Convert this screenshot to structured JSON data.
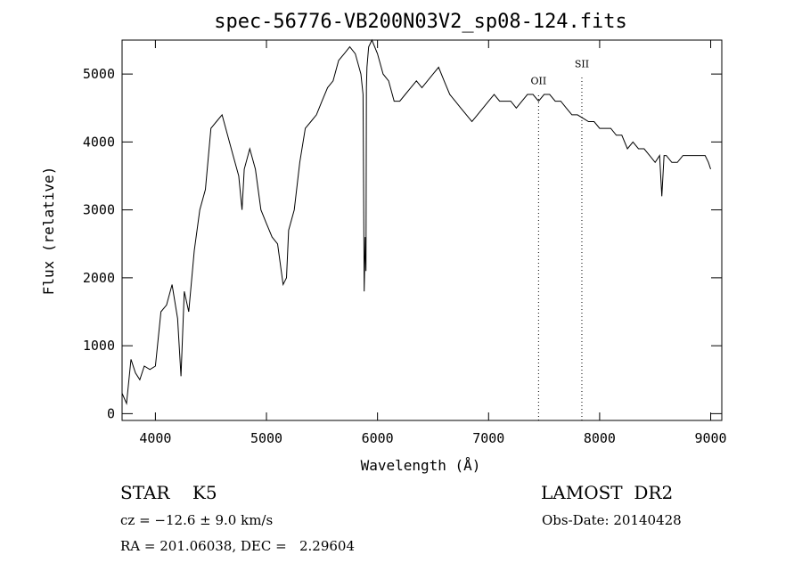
{
  "chart_data": {
    "type": "line",
    "title": "spec-56776-VB200N03V2_sp08-124.fits",
    "xlabel": "Wavelength (Å)",
    "ylabel": "Flux (relative)",
    "xlim": [
      3700,
      9100
    ],
    "ylim": [
      -100,
      5500
    ],
    "x_ticks": [
      4000,
      5000,
      6000,
      7000,
      8000,
      9000
    ],
    "y_ticks": [
      0,
      1000,
      2000,
      3000,
      4000,
      5000
    ],
    "grid": false,
    "series": [
      {
        "x": [
          3700,
          3740,
          3780,
          3820,
          3860,
          3900,
          3950,
          4000,
          4050,
          4100,
          4150,
          4200,
          4230,
          4260,
          4300,
          4350,
          4400,
          4450,
          4500,
          4550,
          4600,
          4650,
          4700,
          4750,
          4780,
          4800,
          4850,
          4900,
          4950,
          5000,
          5050,
          5100,
          5150,
          5180,
          5200,
          5250,
          5300,
          5350,
          5400,
          5450,
          5500,
          5550,
          5600,
          5650,
          5700,
          5750,
          5800,
          5850,
          5870,
          5880,
          5890,
          5896,
          5900,
          5905,
          5920,
          5950,
          6000,
          6050,
          6100,
          6150,
          6200,
          6250,
          6300,
          6350,
          6400,
          6450,
          6500,
          6550,
          6600,
          6650,
          6700,
          6750,
          6800,
          6850,
          6900,
          6950,
          7000,
          7050,
          7100,
          7150,
          7200,
          7250,
          7300,
          7350,
          7400,
          7450,
          7500,
          7550,
          7600,
          7650,
          7700,
          7750,
          7800,
          7850,
          7900,
          7950,
          8000,
          8050,
          8100,
          8150,
          8200,
          8250,
          8300,
          8350,
          8400,
          8450,
          8500,
          8540,
          8560,
          8580,
          8600,
          8650,
          8700,
          8750,
          8800,
          8850,
          8900,
          8950,
          8980,
          9000
        ],
        "y": [
          300,
          150,
          800,
          600,
          500,
          700,
          650,
          700,
          1500,
          1600,
          1900,
          1400,
          550,
          1800,
          1500,
          2400,
          3000,
          3300,
          4200,
          4300,
          4400,
          4100,
          3800,
          3500,
          3000,
          3600,
          3900,
          3600,
          3000,
          2800,
          2600,
          2500,
          1900,
          2000,
          2700,
          3000,
          3700,
          4200,
          4300,
          4400,
          4600,
          4800,
          4900,
          5200,
          5300,
          5400,
          5300,
          5000,
          4700,
          1800,
          2600,
          2100,
          4800,
          5100,
          5400,
          5500,
          5300,
          5000,
          4900,
          4600,
          4600,
          4700,
          4800,
          4900,
          4800,
          4900,
          5000,
          5100,
          4900,
          4700,
          4600,
          4500,
          4400,
          4300,
          4400,
          4500,
          4600,
          4700,
          4600,
          4600,
          4600,
          4500,
          4600,
          4700,
          4700,
          4600,
          4700,
          4700,
          4600,
          4600,
          4500,
          4400,
          4400,
          4350,
          4300,
          4300,
          4200,
          4200,
          4200,
          4100,
          4100,
          3900,
          4000,
          3900,
          3900,
          3800,
          3700,
          3800,
          3200,
          3800,
          3800,
          3700,
          3700,
          3800,
          3800,
          3800,
          3800,
          3800,
          3700,
          3600
        ]
      }
    ],
    "annotations": [
      {
        "label": "OII",
        "x": 7450,
        "y": 4850
      },
      {
        "label": "SII",
        "x": 7840,
        "y": 5100
      }
    ]
  },
  "info": {
    "class_label": "STAR    K5",
    "survey_label": "LAMOST  DR2",
    "velocity": "cz = −12.6 ± 9.0 km/s",
    "obs_date": "Obs-Date: 20140428",
    "coords": "RA = 201.06038, DEC =   2.29604"
  }
}
